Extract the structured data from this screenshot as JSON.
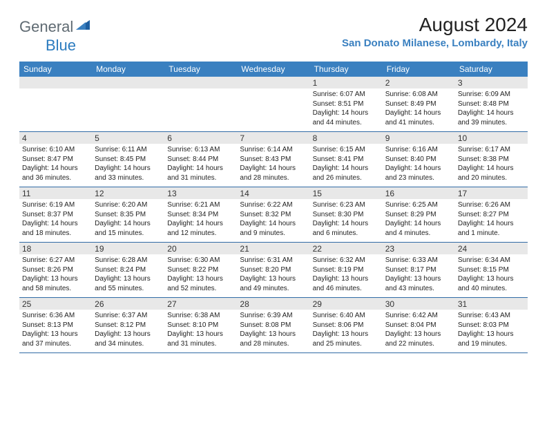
{
  "logo": {
    "general": "General",
    "blue": "Blue"
  },
  "title": "August 2024",
  "location": "San Donato Milanese, Lombardy, Italy",
  "colors": {
    "header_bg": "#3a80c0",
    "header_text": "#ffffff",
    "daynum_bg": "#e8e8e8",
    "divider": "#2f6aa5",
    "logo_gray": "#5f6a72",
    "logo_blue": "#2b7bbf",
    "location_color": "#3a80c0"
  },
  "day_names": [
    "Sunday",
    "Monday",
    "Tuesday",
    "Wednesday",
    "Thursday",
    "Friday",
    "Saturday"
  ],
  "weeks": [
    [
      {
        "num": "",
        "sunrise": "",
        "sunset": "",
        "daylight": ""
      },
      {
        "num": "",
        "sunrise": "",
        "sunset": "",
        "daylight": ""
      },
      {
        "num": "",
        "sunrise": "",
        "sunset": "",
        "daylight": ""
      },
      {
        "num": "",
        "sunrise": "",
        "sunset": "",
        "daylight": ""
      },
      {
        "num": "1",
        "sunrise": "Sunrise: 6:07 AM",
        "sunset": "Sunset: 8:51 PM",
        "daylight": "Daylight: 14 hours and 44 minutes."
      },
      {
        "num": "2",
        "sunrise": "Sunrise: 6:08 AM",
        "sunset": "Sunset: 8:49 PM",
        "daylight": "Daylight: 14 hours and 41 minutes."
      },
      {
        "num": "3",
        "sunrise": "Sunrise: 6:09 AM",
        "sunset": "Sunset: 8:48 PM",
        "daylight": "Daylight: 14 hours and 39 minutes."
      }
    ],
    [
      {
        "num": "4",
        "sunrise": "Sunrise: 6:10 AM",
        "sunset": "Sunset: 8:47 PM",
        "daylight": "Daylight: 14 hours and 36 minutes."
      },
      {
        "num": "5",
        "sunrise": "Sunrise: 6:11 AM",
        "sunset": "Sunset: 8:45 PM",
        "daylight": "Daylight: 14 hours and 33 minutes."
      },
      {
        "num": "6",
        "sunrise": "Sunrise: 6:13 AM",
        "sunset": "Sunset: 8:44 PM",
        "daylight": "Daylight: 14 hours and 31 minutes."
      },
      {
        "num": "7",
        "sunrise": "Sunrise: 6:14 AM",
        "sunset": "Sunset: 8:43 PM",
        "daylight": "Daylight: 14 hours and 28 minutes."
      },
      {
        "num": "8",
        "sunrise": "Sunrise: 6:15 AM",
        "sunset": "Sunset: 8:41 PM",
        "daylight": "Daylight: 14 hours and 26 minutes."
      },
      {
        "num": "9",
        "sunrise": "Sunrise: 6:16 AM",
        "sunset": "Sunset: 8:40 PM",
        "daylight": "Daylight: 14 hours and 23 minutes."
      },
      {
        "num": "10",
        "sunrise": "Sunrise: 6:17 AM",
        "sunset": "Sunset: 8:38 PM",
        "daylight": "Daylight: 14 hours and 20 minutes."
      }
    ],
    [
      {
        "num": "11",
        "sunrise": "Sunrise: 6:19 AM",
        "sunset": "Sunset: 8:37 PM",
        "daylight": "Daylight: 14 hours and 18 minutes."
      },
      {
        "num": "12",
        "sunrise": "Sunrise: 6:20 AM",
        "sunset": "Sunset: 8:35 PM",
        "daylight": "Daylight: 14 hours and 15 minutes."
      },
      {
        "num": "13",
        "sunrise": "Sunrise: 6:21 AM",
        "sunset": "Sunset: 8:34 PM",
        "daylight": "Daylight: 14 hours and 12 minutes."
      },
      {
        "num": "14",
        "sunrise": "Sunrise: 6:22 AM",
        "sunset": "Sunset: 8:32 PM",
        "daylight": "Daylight: 14 hours and 9 minutes."
      },
      {
        "num": "15",
        "sunrise": "Sunrise: 6:23 AM",
        "sunset": "Sunset: 8:30 PM",
        "daylight": "Daylight: 14 hours and 6 minutes."
      },
      {
        "num": "16",
        "sunrise": "Sunrise: 6:25 AM",
        "sunset": "Sunset: 8:29 PM",
        "daylight": "Daylight: 14 hours and 4 minutes."
      },
      {
        "num": "17",
        "sunrise": "Sunrise: 6:26 AM",
        "sunset": "Sunset: 8:27 PM",
        "daylight": "Daylight: 14 hours and 1 minute."
      }
    ],
    [
      {
        "num": "18",
        "sunrise": "Sunrise: 6:27 AM",
        "sunset": "Sunset: 8:26 PM",
        "daylight": "Daylight: 13 hours and 58 minutes."
      },
      {
        "num": "19",
        "sunrise": "Sunrise: 6:28 AM",
        "sunset": "Sunset: 8:24 PM",
        "daylight": "Daylight: 13 hours and 55 minutes."
      },
      {
        "num": "20",
        "sunrise": "Sunrise: 6:30 AM",
        "sunset": "Sunset: 8:22 PM",
        "daylight": "Daylight: 13 hours and 52 minutes."
      },
      {
        "num": "21",
        "sunrise": "Sunrise: 6:31 AM",
        "sunset": "Sunset: 8:20 PM",
        "daylight": "Daylight: 13 hours and 49 minutes."
      },
      {
        "num": "22",
        "sunrise": "Sunrise: 6:32 AM",
        "sunset": "Sunset: 8:19 PM",
        "daylight": "Daylight: 13 hours and 46 minutes."
      },
      {
        "num": "23",
        "sunrise": "Sunrise: 6:33 AM",
        "sunset": "Sunset: 8:17 PM",
        "daylight": "Daylight: 13 hours and 43 minutes."
      },
      {
        "num": "24",
        "sunrise": "Sunrise: 6:34 AM",
        "sunset": "Sunset: 8:15 PM",
        "daylight": "Daylight: 13 hours and 40 minutes."
      }
    ],
    [
      {
        "num": "25",
        "sunrise": "Sunrise: 6:36 AM",
        "sunset": "Sunset: 8:13 PM",
        "daylight": "Daylight: 13 hours and 37 minutes."
      },
      {
        "num": "26",
        "sunrise": "Sunrise: 6:37 AM",
        "sunset": "Sunset: 8:12 PM",
        "daylight": "Daylight: 13 hours and 34 minutes."
      },
      {
        "num": "27",
        "sunrise": "Sunrise: 6:38 AM",
        "sunset": "Sunset: 8:10 PM",
        "daylight": "Daylight: 13 hours and 31 minutes."
      },
      {
        "num": "28",
        "sunrise": "Sunrise: 6:39 AM",
        "sunset": "Sunset: 8:08 PM",
        "daylight": "Daylight: 13 hours and 28 minutes."
      },
      {
        "num": "29",
        "sunrise": "Sunrise: 6:40 AM",
        "sunset": "Sunset: 8:06 PM",
        "daylight": "Daylight: 13 hours and 25 minutes."
      },
      {
        "num": "30",
        "sunrise": "Sunrise: 6:42 AM",
        "sunset": "Sunset: 8:04 PM",
        "daylight": "Daylight: 13 hours and 22 minutes."
      },
      {
        "num": "31",
        "sunrise": "Sunrise: 6:43 AM",
        "sunset": "Sunset: 8:03 PM",
        "daylight": "Daylight: 13 hours and 19 minutes."
      }
    ]
  ]
}
